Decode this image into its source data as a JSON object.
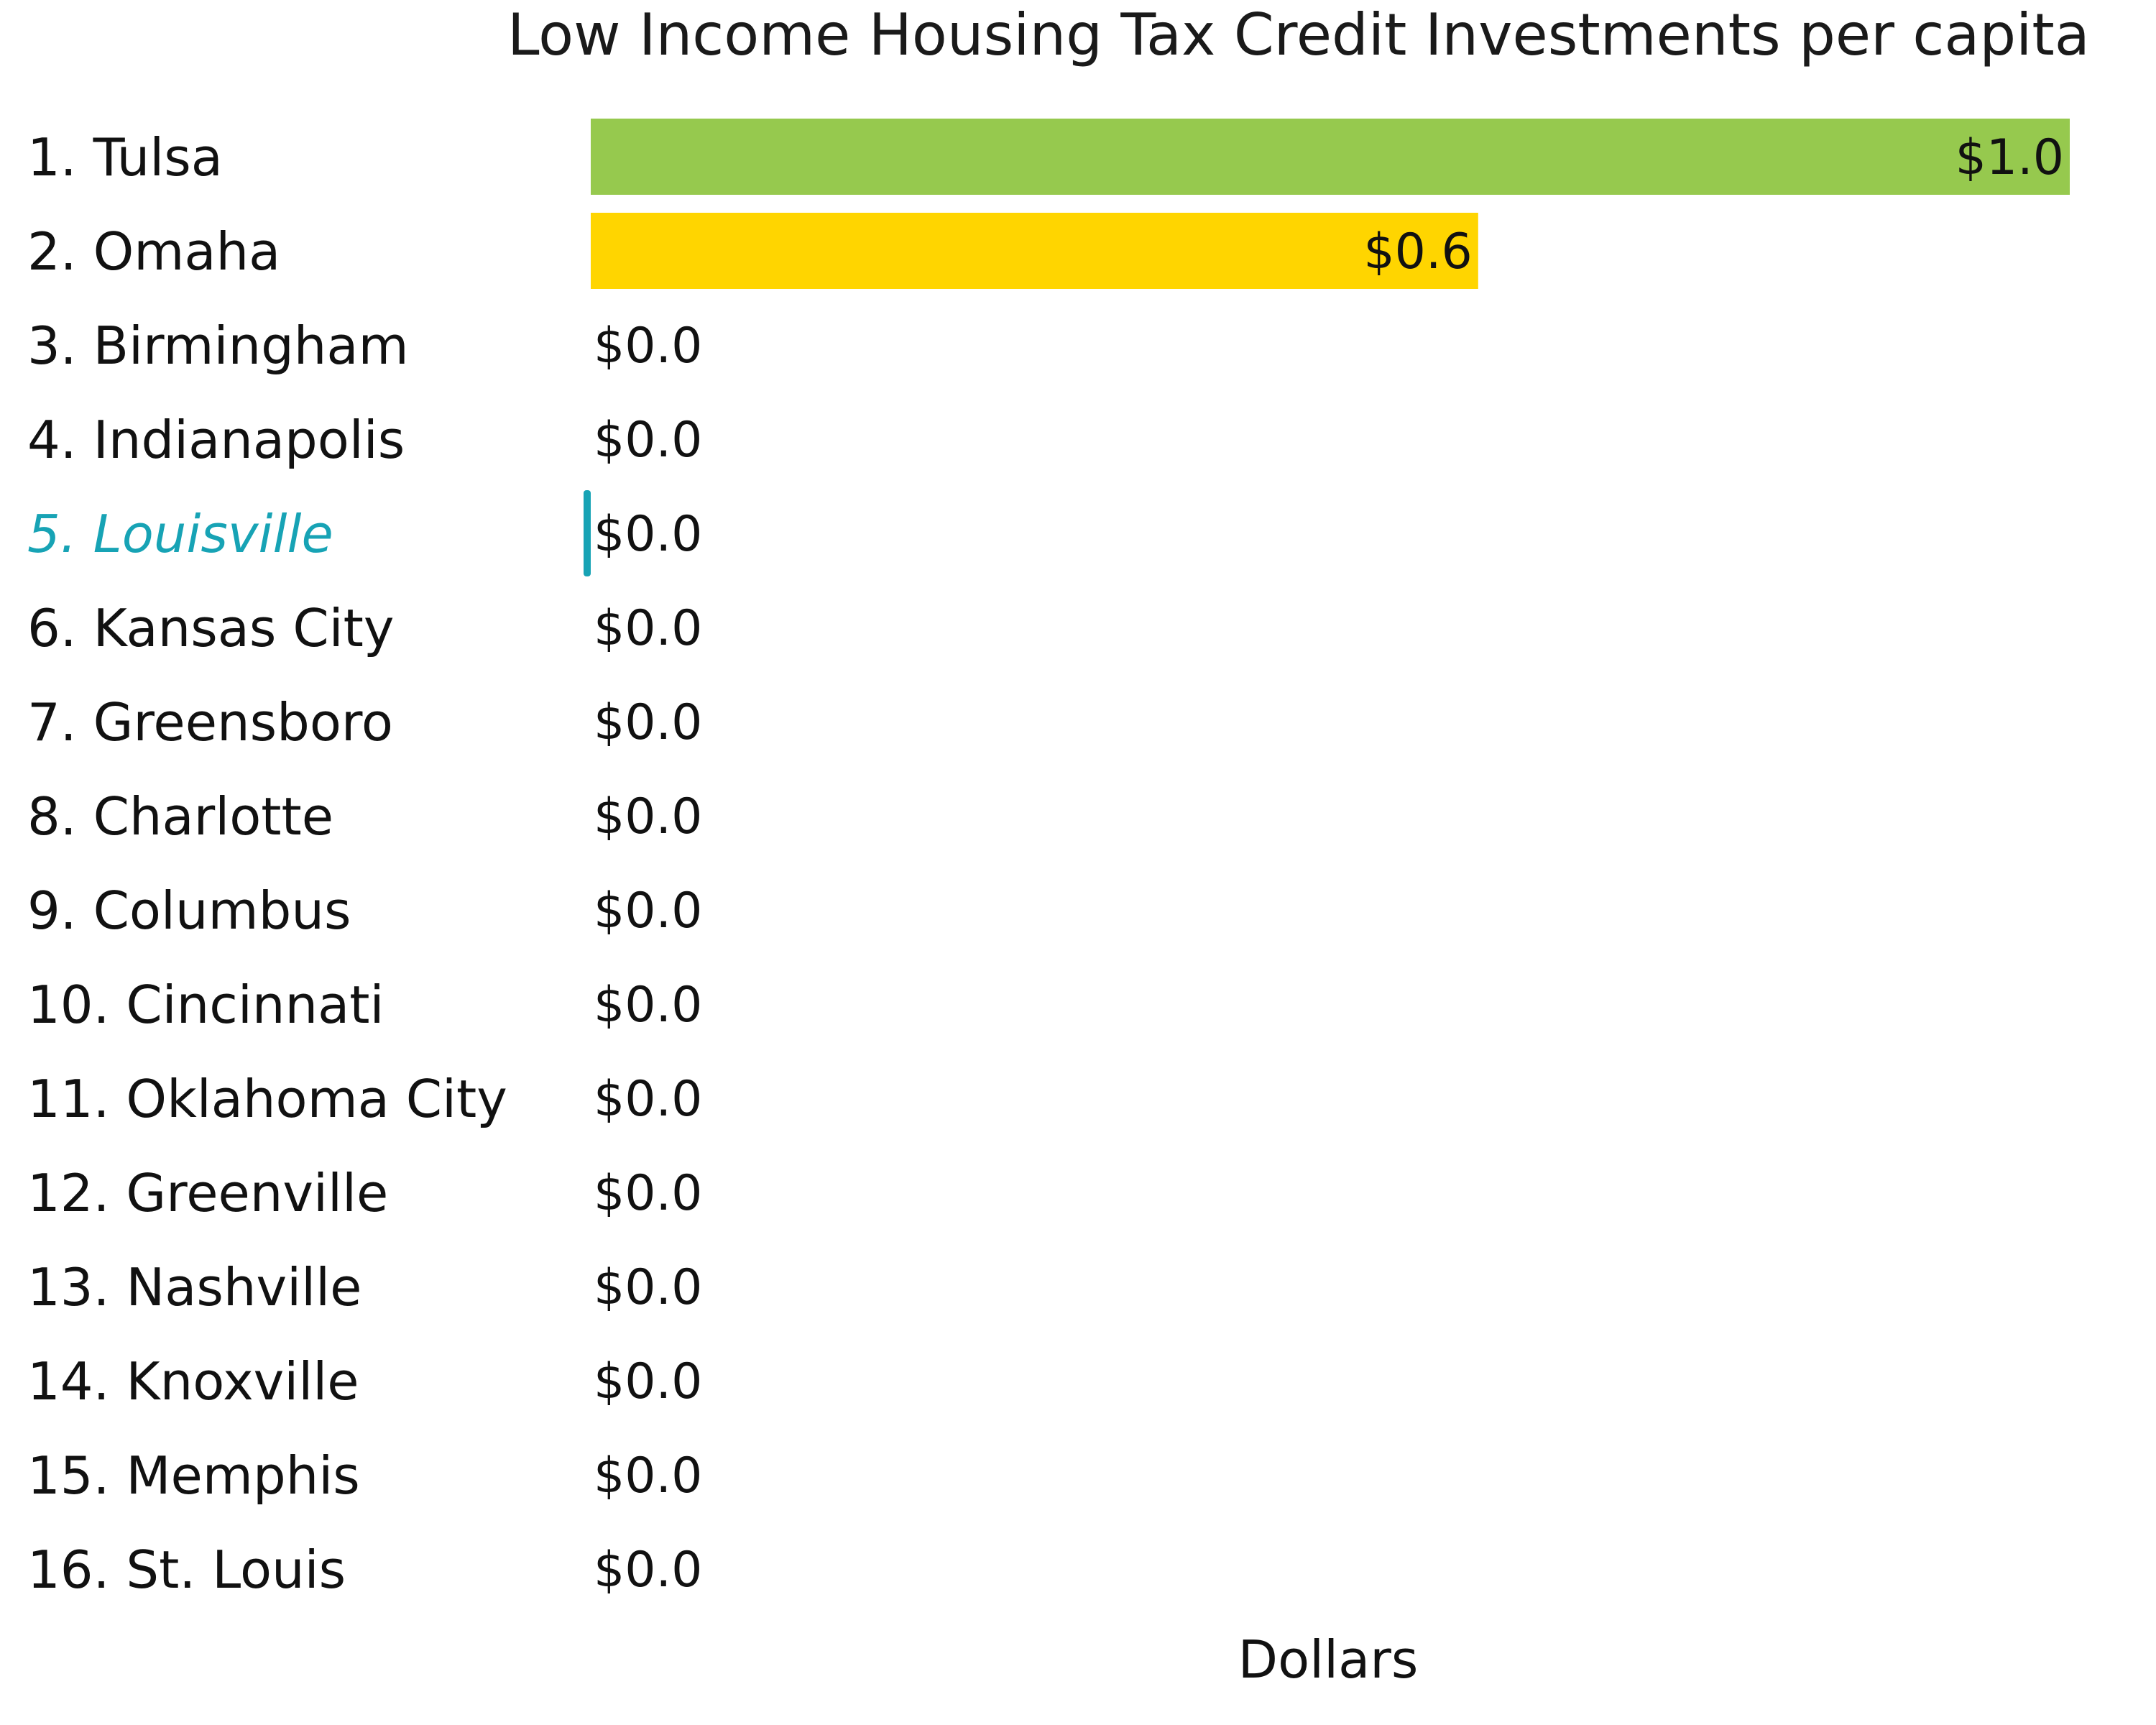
{
  "chart_data": {
    "type": "bar",
    "orientation": "horizontal",
    "title": "Low Income Housing Tax Credit Investments per capita",
    "xlabel": "Dollars",
    "ylabel": "",
    "categories": [
      "1. Tulsa",
      "2. Omaha",
      "3. Birmingham",
      "4. Indianapolis",
      "5. Louisville",
      "6. Kansas City",
      "7. Greensboro",
      "8. Charlotte",
      "9. Columbus",
      "10. Cincinnati",
      "11. Oklahoma City",
      "12. Greenville",
      "13. Nashville",
      "14. Knoxville",
      "15. Memphis",
      "16. St. Louis"
    ],
    "values": [
      1.0,
      0.6,
      0.0,
      0.0,
      0.0,
      0.0,
      0.0,
      0.0,
      0.0,
      0.0,
      0.0,
      0.0,
      0.0,
      0.0,
      0.0,
      0.0
    ],
    "value_labels": [
      "$1.0",
      "$0.6",
      "$0.0",
      "$0.0",
      "$0.0",
      "$0.0",
      "$0.0",
      "$0.0",
      "$0.0",
      "$0.0",
      "$0.0",
      "$0.0",
      "$0.0",
      "$0.0",
      "$0.0",
      "$0.0"
    ],
    "bar_colors": {
      "1. Tulsa": "#96c94e",
      "2. Omaha": "#ffd500"
    },
    "highlight_category": "5. Louisville",
    "highlight_color": "#17a3b5",
    "xlim": [
      0,
      1.0
    ],
    "grid": false,
    "legend": "none"
  }
}
